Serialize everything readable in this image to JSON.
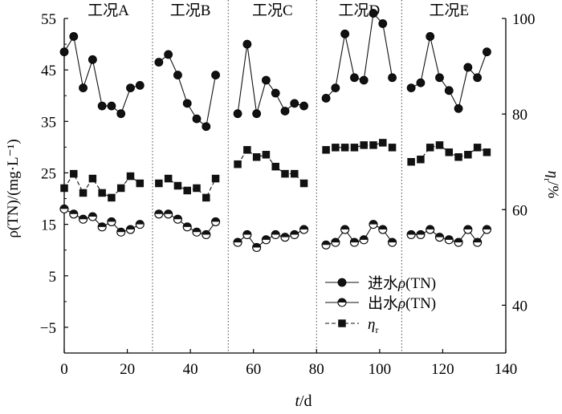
{
  "chart_data": {
    "type": "line",
    "conditions": [
      "工况A",
      "工况B",
      "工况C",
      "工况D",
      "工况E"
    ],
    "condition_boundaries": [
      28,
      52,
      80,
      107
    ],
    "xlabel_italic": "t",
    "xlabel_rest": "/d",
    "ylabel_left": "ρ(TN)/(mg·L⁻¹)",
    "ylabel_right": "η_r/%",
    "xlim": [
      0,
      140
    ],
    "xticks": [
      0,
      20,
      40,
      60,
      80,
      100,
      120,
      140
    ],
    "ylim_left": [
      -10,
      55
    ],
    "yticks_left": [
      -5,
      5,
      15,
      25,
      35,
      45,
      55
    ],
    "ylim_right": [
      30,
      100
    ],
    "yticks_right": [
      40,
      60,
      80,
      100
    ],
    "legend_position": "bottom-right",
    "series": [
      {
        "name": "进水ρ(TN)",
        "marker": "filled-circle",
        "axis": "left",
        "line": "solid",
        "segments": [
          {
            "x": [
              0,
              3,
              6,
              9,
              12,
              15,
              18,
              21,
              24
            ],
            "y": [
              48.5,
              51.5,
              41.5,
              47.0,
              38.0,
              38.0,
              36.5,
              41.5,
              42.0
            ]
          },
          {
            "x": [
              30,
              33,
              36,
              39,
              42,
              45,
              48
            ],
            "y": [
              46.5,
              48.0,
              44.0,
              38.5,
              35.5,
              34.0,
              44.0
            ]
          },
          {
            "x": [
              55,
              58,
              61,
              64,
              67,
              70,
              73,
              76
            ],
            "y": [
              36.5,
              50.0,
              36.5,
              43.0,
              40.5,
              37.0,
              38.5,
              38.0
            ]
          },
          {
            "x": [
              83,
              86,
              89,
              92,
              95,
              98,
              101,
              104
            ],
            "y": [
              39.5,
              41.5,
              52.0,
              43.5,
              43.0,
              56.0,
              54.0,
              43.5
            ]
          },
          {
            "x": [
              110,
              113,
              116,
              119,
              122,
              125,
              128,
              131,
              134
            ],
            "y": [
              41.5,
              42.5,
              51.5,
              43.5,
              41.0,
              37.5,
              45.5,
              43.5,
              48.5
            ]
          }
        ]
      },
      {
        "name": "出水ρ(TN)",
        "marker": "half-filled-circle",
        "axis": "left",
        "line": "solid",
        "segments": [
          {
            "x": [
              0,
              3,
              6,
              9,
              12,
              15,
              18,
              21,
              24
            ],
            "y": [
              18.0,
              17.0,
              16.0,
              16.5,
              14.5,
              15.5,
              13.5,
              14.0,
              15.0
            ]
          },
          {
            "x": [
              30,
              33,
              36,
              39,
              42,
              45,
              48
            ],
            "y": [
              17.0,
              17.0,
              16.0,
              14.5,
              13.5,
              13.0,
              15.5
            ]
          },
          {
            "x": [
              55,
              58,
              61,
              64,
              67,
              70,
              73,
              76
            ],
            "y": [
              11.5,
              13.0,
              10.5,
              12.0,
              13.0,
              12.5,
              13.0,
              14.0
            ]
          },
          {
            "x": [
              83,
              86,
              89,
              92,
              95,
              98,
              101,
              104
            ],
            "y": [
              11.0,
              11.5,
              14.0,
              11.5,
              12.0,
              15.0,
              14.0,
              11.5
            ]
          },
          {
            "x": [
              110,
              113,
              116,
              119,
              122,
              125,
              128,
              131,
              134
            ],
            "y": [
              13.0,
              13.0,
              14.0,
              12.5,
              12.0,
              11.5,
              14.0,
              11.5,
              14.0
            ]
          }
        ]
      },
      {
        "name": "η_r",
        "marker": "filled-square",
        "axis": "right",
        "line": "dashed",
        "segments": [
          {
            "x": [
              0,
              3,
              6,
              9,
              12,
              15,
              18,
              21,
              24
            ],
            "y": [
              64.5,
              67.5,
              63.5,
              66.5,
              63.5,
              62.5,
              64.5,
              67.0,
              65.5
            ]
          },
          {
            "x": [
              30,
              33,
              36,
              39,
              42,
              45,
              48
            ],
            "y": [
              65.5,
              66.5,
              65.0,
              64.0,
              64.5,
              62.5,
              66.5
            ]
          },
          {
            "x": [
              55,
              58,
              61,
              64,
              67,
              70,
              73,
              76
            ],
            "y": [
              69.5,
              72.5,
              71.0,
              71.5,
              69.0,
              67.5,
              67.5,
              65.5
            ]
          },
          {
            "x": [
              83,
              86,
              89,
              92,
              95,
              98,
              101,
              104
            ],
            "y": [
              72.5,
              73.0,
              73.0,
              73.0,
              73.5,
              73.5,
              74.0,
              73.0
            ]
          },
          {
            "x": [
              110,
              113,
              116,
              119,
              122,
              125,
              128,
              131,
              134
            ],
            "y": [
              70.0,
              70.5,
              73.0,
              73.5,
              72.0,
              71.0,
              71.5,
              73.0,
              72.0
            ]
          }
        ]
      }
    ]
  }
}
